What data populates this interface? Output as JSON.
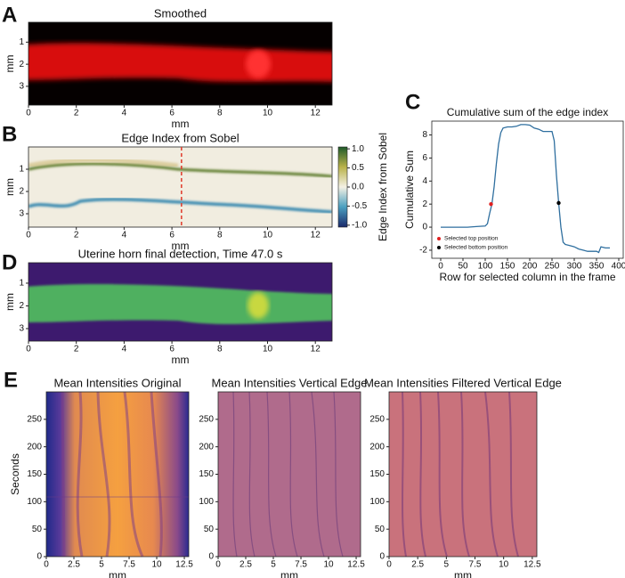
{
  "chart_data": [
    {
      "type": "image",
      "panel": "A",
      "title": "Smoothed",
      "xlabel": "mm",
      "ylabel": "mm",
      "xlim": [
        0,
        12.7
      ],
      "ylim": [
        3.85,
        0.1
      ],
      "xticks": [
        0,
        2,
        4,
        6,
        8,
        10,
        12
      ],
      "yticks": [
        1,
        2,
        3
      ]
    },
    {
      "type": "image",
      "panel": "B",
      "title": "Edge Index from Sobel",
      "xlabel": "mm",
      "ylabel": "mm",
      "xlim": [
        0,
        12.7
      ],
      "ylim": [
        3.6,
        0.0
      ],
      "xticks": [
        0,
        2,
        4,
        6,
        8,
        10,
        12
      ],
      "yticks": [
        1,
        2,
        3
      ],
      "marker_x": 6.4,
      "marker_color": "#e03a2a",
      "colorbar": {
        "label": "Edge Index from Sobel",
        "lim": [
          -1.05,
          1.05
        ],
        "ticks": [
          {
            "value": 1,
            "label": "1.0"
          },
          {
            "value": 0.5,
            "label": "0.5"
          },
          {
            "value": 0,
            "label": "0.0"
          },
          {
            "value": -0.5,
            "label": "-0.5"
          },
          {
            "value": -1,
            "label": "-1.0"
          }
        ]
      }
    },
    {
      "type": "line",
      "panel": "C",
      "title": "Cumulative sum of the edge index",
      "xlabel": "Row for selected column in the frame",
      "ylabel": "Cumulative Sum",
      "xlim": [
        -20,
        410
      ],
      "ylim": [
        -2.7,
        9.2
      ],
      "xticks": [
        0,
        50,
        100,
        150,
        200,
        250,
        300,
        350,
        400
      ],
      "yticks": [
        -2,
        0,
        2,
        4,
        6,
        8
      ],
      "x": [
        0,
        20,
        40,
        60,
        80,
        100,
        105,
        110,
        115,
        120,
        125,
        130,
        135,
        140,
        150,
        160,
        170,
        180,
        190,
        200,
        210,
        220,
        230,
        240,
        250,
        255,
        260,
        265,
        270,
        275,
        280,
        290,
        300,
        310,
        320,
        330,
        340,
        350,
        355,
        360,
        370,
        380
      ],
      "series": [
        {
          "color": "#2f6f9f",
          "values": [
            0,
            0,
            0,
            0,
            0.05,
            0.1,
            0.3,
            1.2,
            2,
            3.5,
            5.5,
            7.2,
            8.2,
            8.6,
            8.7,
            8.7,
            8.75,
            8.9,
            8.9,
            8.85,
            8.6,
            8.5,
            8.3,
            8.3,
            8.3,
            7.5,
            4.5,
            2.1,
            0,
            -1.3,
            -1.5,
            -1.6,
            -1.7,
            -1.9,
            -2,
            -2.1,
            -2.1,
            -2.1,
            -2.2,
            -1.7,
            -1.8,
            -1.8
          ]
        }
      ],
      "points": [
        {
          "name": "Selected top position",
          "color": "#e02020",
          "x": 113,
          "y": 2
        },
        {
          "name": "Selected bottom position",
          "color": "#000000",
          "x": 265,
          "y": 2.1
        }
      ],
      "legend": "lower left"
    },
    {
      "type": "image",
      "panel": "D",
      "title": "Uterine horn final detection, Time 47.0 s",
      "xlabel": "mm",
      "ylabel": "mm",
      "xlim": [
        0,
        12.7
      ],
      "ylim": [
        3.55,
        0.1
      ],
      "xticks": [
        0,
        2,
        4,
        6,
        8,
        10,
        12
      ],
      "yticks": [
        1,
        2,
        3
      ]
    },
    {
      "type": "image",
      "panel": "E",
      "title": "Mean Intensities Original",
      "xlabel": "mm",
      "ylabel": "Seconds",
      "xlim": [
        0,
        12.9
      ],
      "ylim": [
        0,
        300
      ],
      "xticks": [
        0,
        2.5,
        {
          "value": 5,
          "label": "5"
        },
        7.5,
        10,
        12.5
      ],
      "yticks": [
        0,
        50,
        100,
        150,
        200,
        250
      ]
    },
    {
      "type": "image",
      "title": "Mean Intensities Vertical Edge",
      "xlabel": "mm",
      "xlim": [
        0,
        12.9
      ],
      "ylim": [
        0,
        300
      ],
      "xticks": [
        0,
        2.5,
        5,
        7.5,
        10,
        12.5
      ],
      "yticks": [
        0,
        50,
        100,
        150,
        200,
        250
      ]
    },
    {
      "type": "image",
      "title": "Mean Intensities Filtered Vertical Edge",
      "xlabel": "mm",
      "xlim": [
        0,
        12.9
      ],
      "ylim": [
        0,
        300
      ],
      "xticks": [
        0,
        2.5,
        5,
        7.5,
        10,
        12.5
      ],
      "yticks": [
        0,
        50,
        100,
        150,
        200,
        250
      ]
    }
  ]
}
